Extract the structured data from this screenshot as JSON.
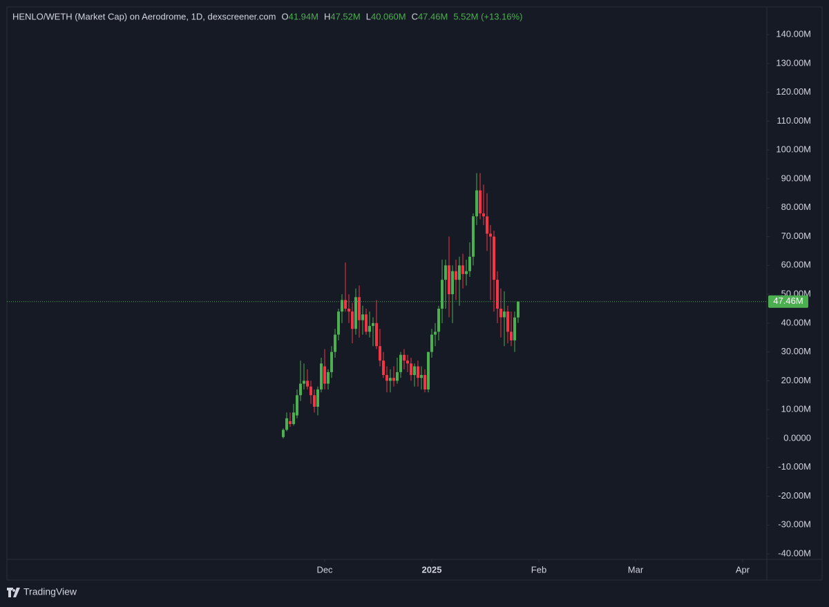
{
  "chart_data": {
    "type": "candlestick",
    "title": "HENLO/WETH (Market Cap) on Aerodrome, 1D, dexscreener.com",
    "legend_values": [
      {
        "key": "O",
        "value": "41.94M"
      },
      {
        "key": "H",
        "value": "47.52M"
      },
      {
        "key": "L",
        "value": "40.060M"
      },
      {
        "key": "C",
        "value": "47.46M"
      }
    ],
    "change": "5.52M (+13.16%)",
    "open": [
      0.5,
      3,
      6,
      5,
      8,
      15,
      19,
      20,
      18,
      15,
      11,
      17,
      25,
      19,
      23,
      30,
      36,
      44,
      48,
      45,
      44,
      38,
      49,
      41,
      43,
      37,
      39,
      40,
      32,
      27,
      22,
      20,
      21,
      20,
      23,
      29,
      27,
      26,
      22,
      25,
      21,
      22,
      17,
      30,
      36,
      37,
      45,
      55,
      60,
      50,
      58,
      55,
      60,
      57,
      58,
      63,
      77,
      86,
      78,
      77,
      71,
      70,
      55,
      45,
      42,
      44,
      37,
      34,
      41.94
    ],
    "high": [
      3.5,
      9,
      9,
      12,
      17,
      27,
      26,
      24,
      20,
      17,
      18,
      28,
      31,
      24,
      32,
      38,
      45,
      50,
      61,
      50,
      47,
      52,
      53,
      46,
      45,
      44,
      42,
      48,
      38,
      30,
      25,
      24,
      25,
      28,
      30,
      31,
      29,
      28,
      26,
      27,
      25,
      24,
      30,
      38,
      40,
      46,
      62,
      62,
      70,
      60,
      62,
      63,
      64,
      62,
      68,
      78,
      92,
      92,
      88,
      85,
      74,
      72,
      58,
      52,
      51,
      46,
      44,
      44,
      47.52
    ],
    "low": [
      0,
      2.5,
      4,
      4.5,
      7,
      13,
      17,
      17,
      12,
      9,
      8,
      16,
      17,
      17,
      21,
      28,
      34,
      40,
      44,
      40,
      33,
      36,
      35,
      36,
      36,
      35,
      32,
      31,
      25,
      21,
      16,
      16,
      18,
      19,
      21,
      24,
      23,
      20,
      18,
      18,
      17,
      16,
      16,
      28,
      32,
      34,
      40,
      45,
      42,
      40,
      48,
      46,
      52,
      53,
      56,
      60,
      74,
      76,
      74,
      65,
      48,
      44,
      40,
      35,
      32,
      33,
      32,
      30,
      40.06
    ],
    "close": [
      3,
      7,
      5,
      9,
      15,
      19,
      20,
      18,
      15,
      11,
      17,
      26,
      19,
      23,
      30,
      36,
      44,
      48,
      45,
      44,
      38,
      49,
      41,
      43,
      37,
      39,
      40,
      32,
      27,
      22,
      20,
      21,
      20,
      23,
      29,
      27,
      26,
      22,
      25,
      21,
      22,
      17,
      30,
      36,
      37,
      45,
      55,
      60,
      50,
      58,
      55,
      60,
      57,
      58,
      63,
      77,
      86,
      78,
      77,
      71,
      70,
      55,
      45,
      42,
      44,
      37,
      34,
      41.94,
      47.46
    ],
    "last_close_label": "47.46M",
    "up_color": "#4caf50",
    "down_color": "#f23645",
    "ylim": [
      -41.9,
      149.6
    ],
    "yticks": [
      {
        "value": -40,
        "label": "-40.00M"
      },
      {
        "value": -30,
        "label": "-30.00M"
      },
      {
        "value": -20,
        "label": "-20.00M"
      },
      {
        "value": -10,
        "label": "-10.00M"
      },
      {
        "value": 0,
        "label": "0.0000"
      },
      {
        "value": 10,
        "label": "10.00M"
      },
      {
        "value": 20,
        "label": "20.00M"
      },
      {
        "value": 30,
        "label": "30.00M"
      },
      {
        "value": 40,
        "label": "40.00M"
      },
      {
        "value": 50,
        "label": "50.00M"
      },
      {
        "value": 60,
        "label": "60.00M"
      },
      {
        "value": 70,
        "label": "70.00M"
      },
      {
        "value": 80,
        "label": "80.00M"
      },
      {
        "value": 90,
        "label": "90.00M"
      },
      {
        "value": 100,
        "label": "100.00M"
      },
      {
        "value": 110,
        "label": "110.00M"
      },
      {
        "value": 120,
        "label": "120.00M"
      },
      {
        "value": 130,
        "label": "130.00M"
      },
      {
        "value": 140,
        "label": "140.00M"
      }
    ],
    "xlim": [
      -80,
      140
    ],
    "xticks": [
      {
        "value": 12,
        "label": "Dec"
      },
      {
        "value": 43,
        "label": "2025"
      },
      {
        "value": 74,
        "label": "Feb"
      },
      {
        "value": 102,
        "label": "Mar"
      },
      {
        "value": 133,
        "label": "Apr"
      }
    ]
  },
  "footer": {
    "brand": "TradingView"
  }
}
